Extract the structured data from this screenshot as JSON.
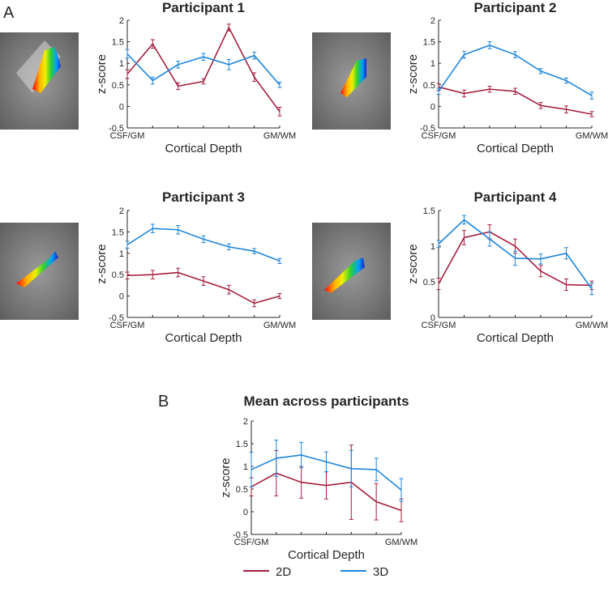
{
  "panel_labels": [
    "A",
    "B"
  ],
  "chart_data": [
    {
      "type": "line",
      "title": "Participant 1",
      "xlabel": "Cortical Depth",
      "ylabel": "z-score",
      "categories": [
        "CSF/GM",
        null,
        null,
        null,
        null,
        null,
        "GM/WM"
      ],
      "ylim": [
        -0.5,
        2
      ],
      "yticks": [
        -0.5,
        0,
        0.5,
        1,
        1.5,
        2
      ],
      "series": [
        {
          "color": "#a4203f",
          "values": [
            0.75,
            1.45,
            0.47,
            0.58,
            1.83,
            0.68,
            -0.12
          ],
          "errors": [
            0.1,
            0.1,
            0.08,
            0.06,
            0.08,
            0.1,
            0.1
          ]
        },
        {
          "color": "#1f86db",
          "values": [
            1.22,
            0.6,
            0.97,
            1.15,
            0.97,
            1.18,
            0.5
          ],
          "errors": [
            0.1,
            0.08,
            0.08,
            0.08,
            0.12,
            0.08,
            0.06
          ]
        }
      ]
    },
    {
      "type": "line",
      "title": "Participant 2",
      "xlabel": "Cortical Depth",
      "ylabel": "z-score",
      "categories": [
        "CSF/GM",
        null,
        null,
        null,
        null,
        null,
        "GM/WM"
      ],
      "ylim": [
        -0.5,
        2
      ],
      "yticks": [
        -0.5,
        0,
        0.5,
        1,
        1.5,
        2
      ],
      "series": [
        {
          "color": "#a4203f",
          "values": [
            0.45,
            0.3,
            0.4,
            0.35,
            0.02,
            -0.07,
            -0.18
          ],
          "errors": [
            0.08,
            0.08,
            0.07,
            0.07,
            0.07,
            0.08,
            0.06
          ]
        },
        {
          "color": "#1f86db",
          "values": [
            0.35,
            1.2,
            1.42,
            1.2,
            0.82,
            0.6,
            0.25
          ],
          "errors": [
            0.07,
            0.08,
            0.08,
            0.07,
            0.06,
            0.06,
            0.08
          ]
        }
      ]
    },
    {
      "type": "line",
      "title": "Participant 3",
      "xlabel": "Cortical Depth",
      "ylabel": "z-score",
      "categories": [
        "CSF/GM",
        null,
        null,
        null,
        null,
        null,
        "GM/WM"
      ],
      "ylim": [
        -0.5,
        2
      ],
      "yticks": [
        -0.5,
        0,
        0.5,
        1,
        1.5,
        2
      ],
      "series": [
        {
          "color": "#a4203f",
          "values": [
            0.48,
            0.5,
            0.55,
            0.35,
            0.15,
            -0.17,
            0.0
          ],
          "errors": [
            0.08,
            0.1,
            0.1,
            0.1,
            0.1,
            0.08,
            0.06
          ]
        },
        {
          "color": "#1f86db",
          "values": [
            1.2,
            1.58,
            1.55,
            1.33,
            1.15,
            1.05,
            0.82
          ],
          "errors": [
            0.08,
            0.1,
            0.1,
            0.08,
            0.07,
            0.06,
            0.06
          ]
        }
      ]
    },
    {
      "type": "line",
      "title": "Participant 4",
      "xlabel": "Cortical Depth",
      "ylabel": "z-score",
      "categories": [
        "CSF/GM",
        null,
        null,
        null,
        null,
        null,
        "GM/WM"
      ],
      "ylim": [
        0,
        1.5
      ],
      "yticks": [
        0,
        0.5,
        1,
        1.5
      ],
      "series": [
        {
          "color": "#a4203f",
          "values": [
            0.47,
            1.12,
            1.2,
            1.0,
            0.65,
            0.46,
            0.45
          ],
          "errors": [
            0.08,
            0.1,
            0.1,
            0.1,
            0.08,
            0.08,
            0.06
          ]
        },
        {
          "color": "#1f86db",
          "values": [
            1.03,
            1.37,
            1.1,
            0.83,
            0.82,
            0.9,
            0.4
          ],
          "errors": [
            0.05,
            0.06,
            0.1,
            0.1,
            0.07,
            0.08,
            0.08
          ]
        }
      ]
    },
    {
      "type": "line",
      "title": "Mean across participants",
      "xlabel": "Cortical Depth",
      "ylabel": "z-score",
      "categories": [
        "CSF/GM",
        null,
        null,
        null,
        null,
        null,
        "GM/WM"
      ],
      "ylim": [
        -0.5,
        2
      ],
      "yticks": [
        -0.5,
        0,
        0.5,
        1,
        1.5,
        2
      ],
      "series": [
        {
          "name": "2D",
          "color": "#a4203f",
          "values": [
            0.55,
            0.85,
            0.65,
            0.58,
            0.65,
            0.22,
            0.03
          ],
          "errors": [
            0.2,
            0.5,
            0.35,
            0.3,
            0.82,
            0.4,
            0.25
          ]
        },
        {
          "name": "3D",
          "color": "#1f86db",
          "values": [
            0.93,
            1.18,
            1.25,
            1.1,
            0.95,
            0.93,
            0.48
          ],
          "errors": [
            0.38,
            0.4,
            0.28,
            0.22,
            0.4,
            0.25,
            0.25
          ]
        }
      ]
    }
  ]
}
